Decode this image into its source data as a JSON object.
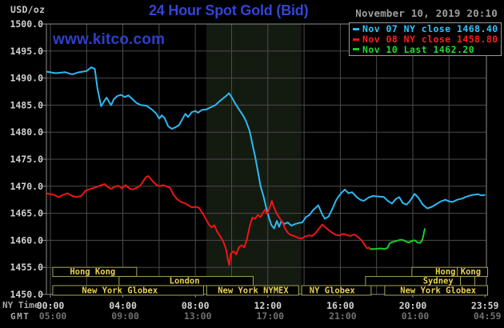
{
  "header": {
    "units": "USD/oz",
    "title": "24 Hour Spot Gold (Bid)",
    "datetime": "November 10, 2019 20:10",
    "watermark": "www.kitco.com"
  },
  "legend": {
    "items": [
      {
        "label": "Nov 07 NY close 1468.40",
        "text_color": "#2fc6ff",
        "line_color": "#2db9f2"
      },
      {
        "label": "Nov 08 NY close 1458.80",
        "text_color": "#ff1f1f",
        "line_color": "#ee1515"
      },
      {
        "label": "Nov 10 Last 1462.20",
        "text_color": "#23da2e",
        "line_color": "#19cd25"
      }
    ]
  },
  "axes": {
    "y_tick_labels": [
      "1500.0",
      "1495.0",
      "1490.0",
      "1485.0",
      "1480.0",
      "1475.0",
      "1470.0",
      "1465.0",
      "1460.0",
      "1455.0",
      "1450.0"
    ],
    "x_ny": {
      "name": "NY Time",
      "labels": [
        "00:00",
        "04:00",
        "08:00",
        "12:00",
        "16:00",
        "20:00",
        "23:59"
      ],
      "hours": [
        0,
        4,
        8,
        12,
        16,
        20,
        23.98
      ]
    },
    "x_gmt": {
      "name": "GMT",
      "labels": [
        "05:00",
        "09:00",
        "13:00",
        "17:00",
        "21:00",
        "01:00",
        "04:59"
      ],
      "hours": [
        0,
        4,
        8,
        12,
        16,
        20,
        23.98
      ]
    }
  },
  "sessions": [
    {
      "row": 0,
      "h1": 0.13,
      "h2": 4.76,
      "label": "Hong Kong",
      "label_h": 2.33
    },
    {
      "row": 0,
      "h1": 19.95,
      "h2": 22.46,
      "label": "",
      "label_h": 0
    },
    {
      "row": 0,
      "h1": 22.46,
      "h2": 24.13,
      "label": "",
      "label_h": 0
    },
    {
      "row": 0,
      "h1": 0,
      "h2": 0,
      "label": "Hong Kong",
      "label_h": 22.5,
      "text_only": true
    },
    {
      "row": 1,
      "h1": 3.79,
      "h2": 11.19,
      "label": "London",
      "label_h": 7.4
    },
    {
      "row": 1,
      "h1": 17.39,
      "h2": 22.63,
      "label": "Sydney",
      "label_h": 21.4
    },
    {
      "row": 1,
      "h1": 22.63,
      "h2": 23.42,
      "label": "",
      "label_h": 0
    },
    {
      "row": 2,
      "h1": 0.13,
      "h2": 8.45,
      "label": "New York Globex",
      "label_h": 3.83
    },
    {
      "row": 2,
      "h1": 8.63,
      "h2": 13.7,
      "label": "New York NYMEX",
      "label_h": 11.19
    },
    {
      "row": 2,
      "h1": 13.87,
      "h2": 17.7,
      "label": "NY Globex",
      "label_h": 15.55
    },
    {
      "row": 2,
      "h1": 18.45,
      "h2": 24.13,
      "label": "New York Globex",
      "label_h": 21.4
    }
  ],
  "colors": {
    "background": "#000000",
    "plot_border": "#8c8c8c",
    "grid": "#4b4b4b",
    "nymex_band": "#131a10",
    "y_label": "#cfcfcf",
    "x_ny_label": "#d3d3d3",
    "x_gmt_label": "#6f6f6f",
    "session_border": "#a3a359",
    "session_text": "#e8d154",
    "title_blue": "#3345d6",
    "watermark_blue": "#2e3fca",
    "datetime_gray": "#9e9e9e"
  },
  "chart_data": {
    "type": "line",
    "title": "24 Hour Spot Gold (Bid)",
    "ylabel": "USD/oz",
    "ylim": [
      1450,
      1500
    ],
    "xlim_hours_ny": [
      0,
      24
    ],
    "grid": true,
    "legend_position": "top-right",
    "nymex_band_hours": [
      8.6,
      13.85
    ],
    "series": [
      {
        "name": "Nov 07 (NY close 1468.40)",
        "color": "#2db9f2",
        "points": [
          [
            -0.22,
            1491.2
          ],
          [
            0.3,
            1490.9
          ],
          [
            0.8,
            1491.1
          ],
          [
            1.2,
            1490.7
          ],
          [
            1.6,
            1491.1
          ],
          [
            2.0,
            1491.3
          ],
          [
            2.25,
            1492.0
          ],
          [
            2.45,
            1491.7
          ],
          [
            2.6,
            1488.0
          ],
          [
            2.8,
            1484.8
          ],
          [
            3.0,
            1485.9
          ],
          [
            3.1,
            1486.4
          ],
          [
            3.25,
            1485.5
          ],
          [
            3.35,
            1485.0
          ],
          [
            3.5,
            1486.1
          ],
          [
            3.7,
            1486.7
          ],
          [
            3.9,
            1486.9
          ],
          [
            4.1,
            1486.5
          ],
          [
            4.3,
            1486.8
          ],
          [
            4.5,
            1486.2
          ],
          [
            4.75,
            1485.4
          ],
          [
            5.0,
            1485.0
          ],
          [
            5.3,
            1484.9
          ],
          [
            5.6,
            1484.2
          ],
          [
            5.85,
            1483.4
          ],
          [
            6.0,
            1482.5
          ],
          [
            6.15,
            1483.1
          ],
          [
            6.3,
            1482.6
          ],
          [
            6.5,
            1481.1
          ],
          [
            6.7,
            1480.6
          ],
          [
            6.9,
            1480.9
          ],
          [
            7.1,
            1481.3
          ],
          [
            7.3,
            1482.5
          ],
          [
            7.45,
            1483.4
          ],
          [
            7.6,
            1482.8
          ],
          [
            7.8,
            1483.7
          ],
          [
            8.0,
            1483.9
          ],
          [
            8.15,
            1483.6
          ],
          [
            8.35,
            1484.1
          ],
          [
            8.6,
            1484.2
          ],
          [
            8.85,
            1484.6
          ],
          [
            9.1,
            1485.0
          ],
          [
            9.4,
            1485.9
          ],
          [
            9.7,
            1486.7
          ],
          [
            9.86,
            1487.2
          ],
          [
            10.0,
            1486.5
          ],
          [
            10.2,
            1485.3
          ],
          [
            10.45,
            1484.0
          ],
          [
            10.65,
            1483.0
          ],
          [
            10.8,
            1482.0
          ],
          [
            11.0,
            1480.2
          ],
          [
            11.15,
            1477.8
          ],
          [
            11.3,
            1475.5
          ],
          [
            11.45,
            1472.8
          ],
          [
            11.6,
            1470.0
          ],
          [
            11.75,
            1468.3
          ],
          [
            11.9,
            1466.2
          ],
          [
            12.05,
            1464.3
          ],
          [
            12.2,
            1462.8
          ],
          [
            12.35,
            1462.2
          ],
          [
            12.5,
            1463.6
          ],
          [
            12.62,
            1462.5
          ],
          [
            12.75,
            1463.6
          ],
          [
            12.9,
            1463.0
          ],
          [
            13.1,
            1463.3
          ],
          [
            13.3,
            1462.7
          ],
          [
            13.5,
            1463.0
          ],
          [
            13.7,
            1463.2
          ],
          [
            13.9,
            1463.3
          ],
          [
            14.1,
            1464.3
          ],
          [
            14.3,
            1464.7
          ],
          [
            14.5,
            1465.6
          ],
          [
            14.7,
            1466.2
          ],
          [
            14.78,
            1466.5
          ],
          [
            15.0,
            1464.8
          ],
          [
            15.15,
            1464.0
          ],
          [
            15.35,
            1464.4
          ],
          [
            15.6,
            1466.1
          ],
          [
            15.75,
            1467.3
          ],
          [
            15.9,
            1468.1
          ],
          [
            16.1,
            1468.9
          ],
          [
            16.25,
            1469.4
          ],
          [
            16.45,
            1468.7
          ],
          [
            16.65,
            1468.9
          ],
          [
            16.9,
            1468.0
          ],
          [
            17.1,
            1467.5
          ],
          [
            17.3,
            1467.3
          ],
          [
            17.55,
            1467.9
          ],
          [
            17.8,
            1468.2
          ],
          [
            18.1,
            1468.1
          ],
          [
            18.4,
            1468.0
          ],
          [
            18.65,
            1467.2
          ],
          [
            18.85,
            1466.8
          ],
          [
            19.05,
            1467.6
          ],
          [
            19.25,
            1468.0
          ],
          [
            19.45,
            1466.9
          ],
          [
            19.65,
            1466.6
          ],
          [
            19.85,
            1467.3
          ],
          [
            20.1,
            1468.6
          ],
          [
            20.3,
            1467.9
          ],
          [
            20.55,
            1466.6
          ],
          [
            20.8,
            1465.9
          ],
          [
            21.05,
            1466.2
          ],
          [
            21.3,
            1466.7
          ],
          [
            21.55,
            1467.2
          ],
          [
            21.8,
            1467.5
          ],
          [
            22.0,
            1467.2
          ],
          [
            22.2,
            1467.1
          ],
          [
            22.45,
            1467.5
          ],
          [
            22.7,
            1467.7
          ],
          [
            23.0,
            1468.1
          ],
          [
            23.3,
            1468.4
          ],
          [
            23.6,
            1468.5
          ],
          [
            23.8,
            1468.3
          ],
          [
            24.0,
            1468.4
          ]
        ]
      },
      {
        "name": "Nov 08 (NY close 1458.80)",
        "color": "#ee1515",
        "points": [
          [
            -0.22,
            1468.7
          ],
          [
            0.2,
            1468.4
          ],
          [
            0.45,
            1468.0
          ],
          [
            0.7,
            1468.4
          ],
          [
            0.95,
            1468.7
          ],
          [
            1.2,
            1468.2
          ],
          [
            1.45,
            1468.0
          ],
          [
            1.7,
            1468.2
          ],
          [
            1.95,
            1469.2
          ],
          [
            2.2,
            1469.5
          ],
          [
            2.5,
            1469.8
          ],
          [
            2.8,
            1470.2
          ],
          [
            3.0,
            1470.4
          ],
          [
            3.2,
            1469.8
          ],
          [
            3.35,
            1469.5
          ],
          [
            3.55,
            1469.9
          ],
          [
            3.75,
            1470.1
          ],
          [
            3.95,
            1469.6
          ],
          [
            4.15,
            1470.2
          ],
          [
            4.35,
            1469.6
          ],
          [
            4.55,
            1469.4
          ],
          [
            4.75,
            1469.7
          ],
          [
            4.95,
            1470.1
          ],
          [
            5.1,
            1470.8
          ],
          [
            5.25,
            1471.6
          ],
          [
            5.4,
            1471.9
          ],
          [
            5.6,
            1471.1
          ],
          [
            5.8,
            1470.4
          ],
          [
            6.0,
            1470.0
          ],
          [
            6.2,
            1470.2
          ],
          [
            6.4,
            1470.0
          ],
          [
            6.6,
            1469.7
          ],
          [
            6.8,
            1468.4
          ],
          [
            7.0,
            1467.6
          ],
          [
            7.2,
            1467.1
          ],
          [
            7.4,
            1466.9
          ],
          [
            7.6,
            1466.5
          ],
          [
            7.8,
            1466.1
          ],
          [
            8.0,
            1466.2
          ],
          [
            8.2,
            1466.0
          ],
          [
            8.4,
            1465.0
          ],
          [
            8.6,
            1463.8
          ],
          [
            8.75,
            1462.9
          ],
          [
            8.9,
            1462.4
          ],
          [
            9.05,
            1462.8
          ],
          [
            9.2,
            1461.6
          ],
          [
            9.4,
            1460.6
          ],
          [
            9.55,
            1459.7
          ],
          [
            9.7,
            1458.3
          ],
          [
            9.8,
            1456.3
          ],
          [
            9.87,
            1455.4
          ],
          [
            9.95,
            1457.5
          ],
          [
            10.1,
            1458.0
          ],
          [
            10.25,
            1457.4
          ],
          [
            10.4,
            1458.7
          ],
          [
            10.55,
            1459.1
          ],
          [
            10.7,
            1458.7
          ],
          [
            10.85,
            1460.3
          ],
          [
            11.0,
            1462.6
          ],
          [
            11.15,
            1464.2
          ],
          [
            11.3,
            1464.0
          ],
          [
            11.45,
            1464.7
          ],
          [
            11.6,
            1464.3
          ],
          [
            11.75,
            1465.2
          ],
          [
            11.85,
            1465.7
          ],
          [
            11.95,
            1464.9
          ],
          [
            12.05,
            1465.5
          ],
          [
            12.15,
            1466.6
          ],
          [
            12.22,
            1467.3
          ],
          [
            12.35,
            1466.0
          ],
          [
            12.5,
            1464.9
          ],
          [
            12.65,
            1464.1
          ],
          [
            12.8,
            1463.4
          ],
          [
            12.95,
            1462.2
          ],
          [
            13.1,
            1461.4
          ],
          [
            13.25,
            1461.0
          ],
          [
            13.45,
            1460.8
          ],
          [
            13.65,
            1460.5
          ],
          [
            13.85,
            1460.3
          ],
          [
            14.05,
            1460.7
          ],
          [
            14.25,
            1460.9
          ],
          [
            14.45,
            1460.8
          ],
          [
            14.65,
            1461.4
          ],
          [
            14.85,
            1462.3
          ],
          [
            15.0,
            1462.9
          ],
          [
            15.15,
            1462.5
          ],
          [
            15.35,
            1461.9
          ],
          [
            15.55,
            1461.4
          ],
          [
            15.75,
            1461.0
          ],
          [
            15.95,
            1460.9
          ],
          [
            16.15,
            1461.2
          ],
          [
            16.35,
            1461.0
          ],
          [
            16.55,
            1460.8
          ],
          [
            16.75,
            1461.1
          ],
          [
            16.95,
            1460.7
          ],
          [
            17.15,
            1460.1
          ],
          [
            17.3,
            1459.4
          ],
          [
            17.45,
            1458.6
          ],
          [
            17.55,
            1458.5
          ],
          [
            17.62,
            1458.8
          ]
        ]
      },
      {
        "name": "Nov 10 (Last 1462.20)",
        "color": "#19cd25",
        "points": [
          [
            17.62,
            1458.4
          ],
          [
            17.9,
            1458.4
          ],
          [
            18.2,
            1458.5
          ],
          [
            18.45,
            1458.4
          ],
          [
            18.6,
            1458.6
          ],
          [
            18.7,
            1459.3
          ],
          [
            18.8,
            1459.6
          ],
          [
            19.0,
            1459.8
          ],
          [
            19.2,
            1460.0
          ],
          [
            19.35,
            1460.1
          ],
          [
            19.5,
            1460.0
          ],
          [
            19.65,
            1459.7
          ],
          [
            19.8,
            1459.6
          ],
          [
            19.95,
            1459.9
          ],
          [
            20.1,
            1460.0
          ],
          [
            20.25,
            1459.6
          ],
          [
            20.4,
            1459.5
          ],
          [
            20.5,
            1459.9
          ],
          [
            20.57,
            1460.6
          ],
          [
            20.62,
            1461.5
          ],
          [
            20.67,
            1462.2
          ]
        ]
      }
    ]
  }
}
